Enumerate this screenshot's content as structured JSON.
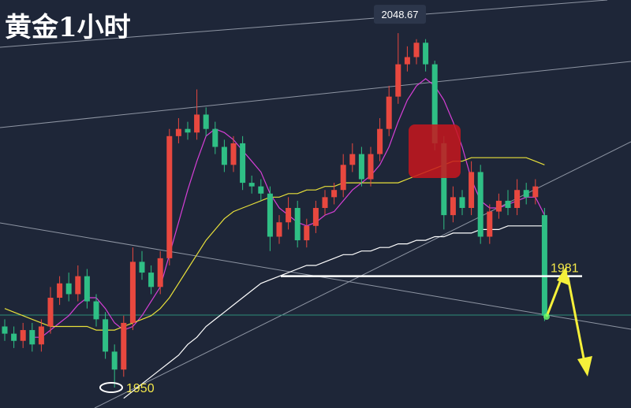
{
  "chart_data": {
    "type": "candlestick",
    "title": "黄金1小时",
    "open": [
      1967,
      1965,
      1963,
      1966,
      1962,
      1967,
      1975,
      1979,
      1976,
      1981,
      1974,
      1969,
      1960,
      1955,
      1968,
      1985,
      1982,
      1978,
      1986,
      2020,
      2022,
      2021,
      2026,
      2022,
      2017,
      2012,
      2018,
      2007,
      2006,
      2004,
      1992,
      1996,
      2000,
      1991,
      1995,
      2000,
      2003,
      2005,
      2012,
      2015,
      2008,
      2015,
      2022,
      2031,
      2040,
      2042,
      2046,
      2040,
      2018,
      1998,
      2003,
      2000,
      2010,
      1992,
      1999,
      2002,
      2000,
      2005,
      2003,
      1998
    ],
    "high": [
      1969,
      1967,
      1968,
      1968,
      1969,
      1978,
      1981,
      1982,
      1984,
      1983,
      1976,
      1971,
      1962,
      1970,
      1989,
      1988,
      1984,
      1988,
      2022,
      2025,
      2024,
      2033,
      2028,
      2024,
      2019,
      2020,
      2020,
      2009,
      2008,
      2006,
      1998,
      2003,
      2002,
      1997,
      2002,
      2005,
      2007,
      2015,
      2018,
      2017,
      2017,
      2025,
      2034,
      2048.67,
      2045,
      2047,
      2047,
      2041,
      2020,
      2006,
      2005,
      2013,
      2012,
      2001,
      2004,
      2005,
      2008,
      2007,
      2008,
      2000
    ],
    "low": [
      1963,
      1961,
      1961,
      1960,
      1960,
      1965,
      1973,
      1974,
      1974,
      1972,
      1967,
      1958,
      1950,
      1953,
      1966,
      1980,
      1976,
      1976,
      1984,
      2018,
      2019,
      2019,
      2020,
      2015,
      2010,
      2010,
      2005,
      2004,
      2002,
      1988,
      1990,
      1994,
      1989,
      1989,
      1993,
      1998,
      2001,
      2003,
      2010,
      2006,
      2006,
      2013,
      2020,
      2029,
      2038,
      2040,
      2038,
      2016,
      1994,
      1996,
      1998,
      1998,
      1990,
      1990,
      1997,
      1998,
      1998,
      2001,
      2001,
      1968.5
    ],
    "close": [
      1965,
      1963,
      1966,
      1962,
      1967,
      1975,
      1979,
      1976,
      1981,
      1974,
      1969,
      1960,
      1955,
      1968,
      1985,
      1982,
      1978,
      1986,
      2020,
      2022,
      2021,
      2026,
      2022,
      2017,
      2012,
      2018,
      2007,
      2006,
      2004,
      1992,
      1996,
      2000,
      1991,
      1995,
      2000,
      2003,
      2005,
      2012,
      2015,
      2008,
      2015,
      2022,
      2031,
      2040,
      2042,
      2046,
      2040,
      2018,
      1998,
      2003,
      2000,
      2010,
      1992,
      1999,
      2002,
      2000,
      2005,
      2003,
      2006,
      1970
    ],
    "up_color": "#e8483f",
    "down_color": "#2fbf85",
    "lines": [
      {
        "color": "#d63fd6",
        "values": [
          null,
          null,
          null,
          1964,
          1964,
          1966,
          1968,
          1970,
          1973,
          1975,
          1975,
          1972,
          1968,
          1966,
          1967,
          1970,
          1974,
          1978,
          1987,
          1996,
          2005,
          2013,
          2020,
          2022,
          2021,
          2019,
          2016,
          2013,
          2010,
          2004,
          2000,
          1998,
          1996,
          1995,
          1996,
          1998,
          1999,
          2002,
          2005,
          2007,
          2009,
          2012,
          2017,
          2024,
          2030,
          2034,
          2036,
          2034,
          2030,
          2024,
          2017,
          2008,
          2002,
          2000,
          2000,
          2001,
          2002,
          2003,
          2003,
          1998
        ]
      },
      {
        "color": "#e8e03a",
        "values": [
          1972,
          1971,
          1970,
          1969,
          1968,
          1967,
          1967,
          1967,
          1967,
          1967,
          1966,
          1966,
          1966,
          1967,
          1968,
          1969,
          1970,
          1972,
          1975,
          1979,
          1983,
          1987,
          1991,
          1994,
          1997,
          1999,
          2000,
          2001,
          2002,
          2003,
          2003,
          2004,
          2004,
          2005,
          2005,
          2006,
          2006,
          2007,
          2007,
          2007,
          2007,
          2007,
          2007,
          2007,
          2008,
          2009,
          2010,
          2011,
          2012,
          2013,
          2013,
          2014,
          2014,
          2014,
          2014,
          2014,
          2014,
          2014,
          2013,
          2012
        ]
      },
      {
        "color": "#ffffff",
        "values": [
          null,
          null,
          null,
          null,
          null,
          null,
          null,
          null,
          null,
          null,
          null,
          null,
          null,
          1947,
          1949,
          1951,
          1953,
          1955,
          1957,
          1959,
          1962,
          1964,
          1967,
          1969,
          1971,
          1973,
          1975,
          1977,
          1979,
          1980,
          1981,
          1982,
          1983,
          1984,
          1984,
          1985,
          1986,
          1987,
          1987,
          1988,
          1988,
          1989,
          1989,
          1990,
          1990,
          1991,
          1991,
          1992,
          1992,
          1993,
          1993,
          1993,
          1994,
          1994,
          1994,
          1995,
          1995,
          1995,
          1995,
          1995
        ]
      }
    ],
    "ylim": [
      1944.3,
      2057.9
    ],
    "high_label": 2048.67,
    "support": 1981,
    "low_label": 1950
  }
}
